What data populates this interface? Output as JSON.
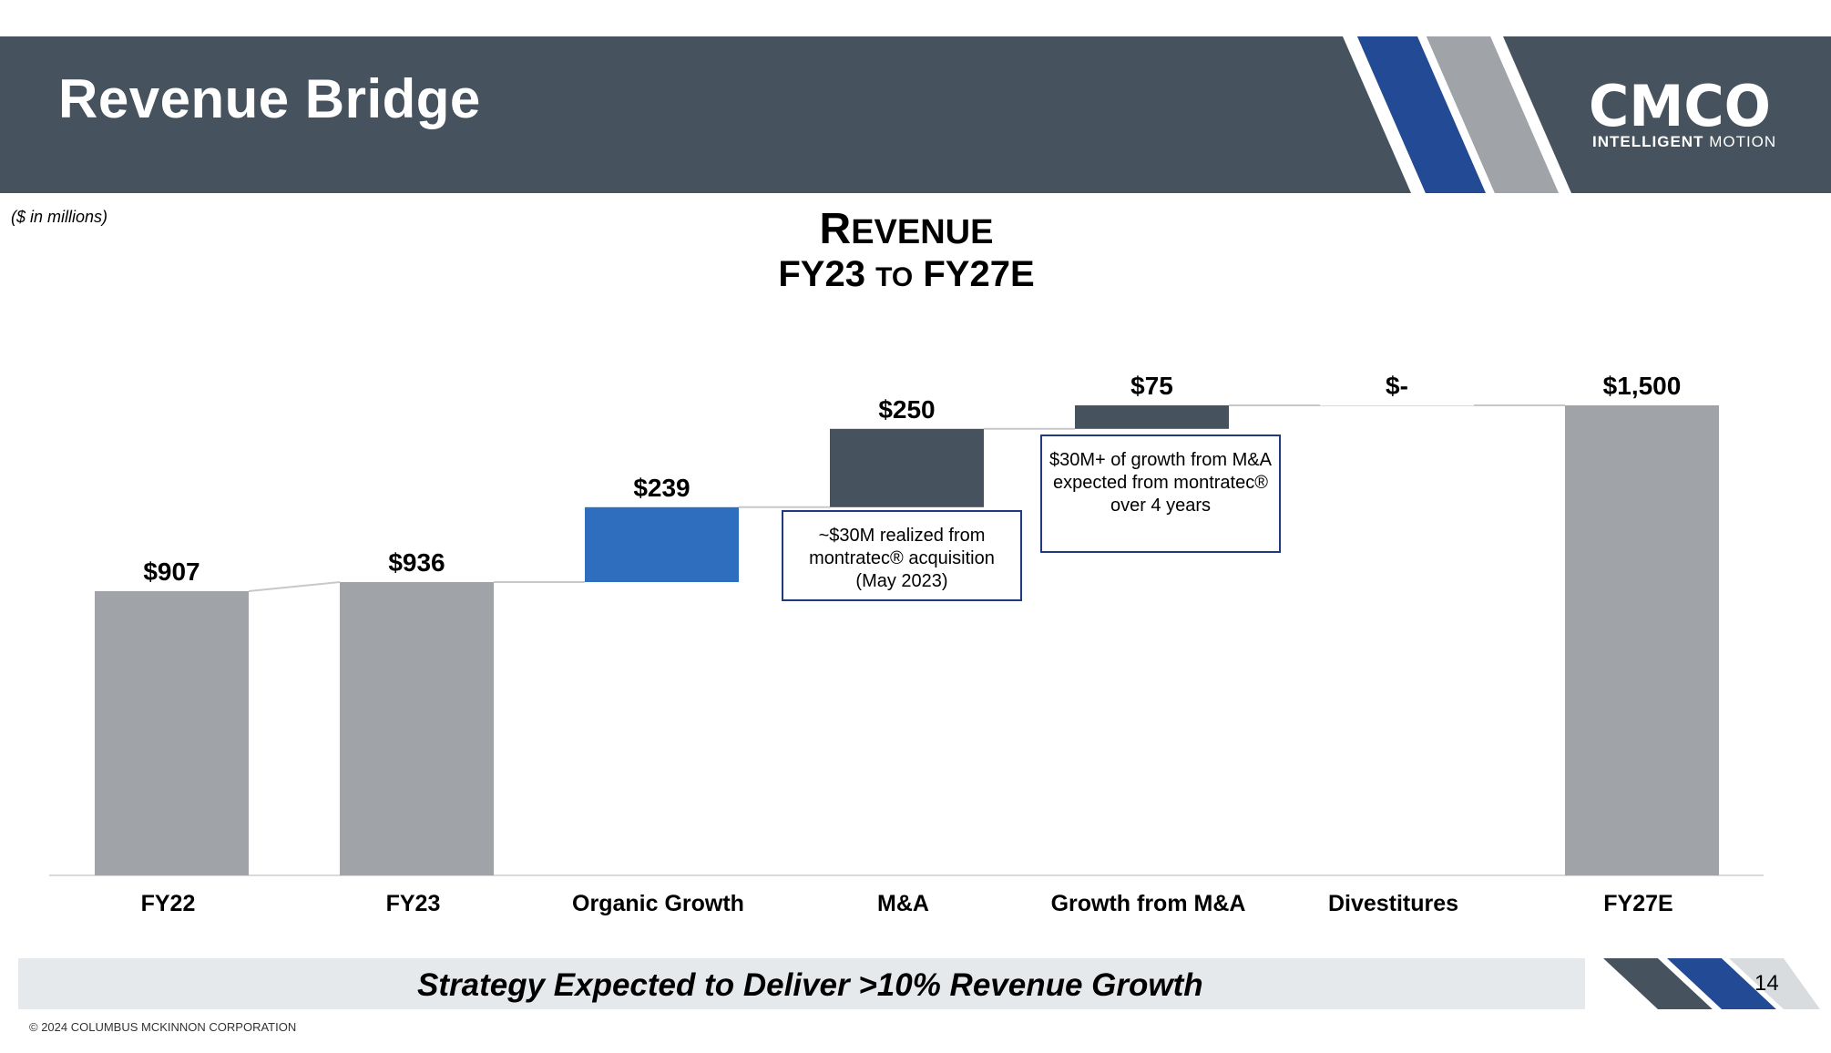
{
  "header": {
    "title": "Revenue Bridge"
  },
  "logo": {
    "word": "CMCO",
    "tagline_bold": "INTELLIGENT",
    "tagline_light": "MOTION"
  },
  "units_note": "($ in millions)",
  "chart_heading": {
    "line1_cap": "R",
    "line1_rest": "EVENUE",
    "line2_a": "FY23",
    "line2_b": "TO",
    "line2_c": "FY27E"
  },
  "chart_data": {
    "type": "bar",
    "categories": [
      "FY22",
      "FY23",
      "Organic Growth",
      "M&A",
      "Growth from M&A",
      "Divestitures",
      "FY27E"
    ],
    "values": [
      907,
      936,
      239,
      250,
      75,
      0,
      1500
    ],
    "data_labels": [
      "$907",
      "$936",
      "$239",
      "$250",
      "$75",
      "$-",
      "$1,500"
    ],
    "kinds": [
      "total",
      "total",
      "increase",
      "increase",
      "increase",
      "increase",
      "total"
    ],
    "ylim": [
      0,
      1500
    ],
    "grid": false,
    "legend": "none"
  },
  "callouts": [
    {
      "text": "~$30M realized from montratec® acquisition (May 2023)"
    },
    {
      "text": "$30M+ of growth from M&A expected from montratec® over 4 years"
    }
  ],
  "colors": {
    "total": "#a0a4a8",
    "organic": "#2f6dbf",
    "ma": "#46525d",
    "header": "#46525d",
    "accent_blue": "#234a94",
    "callout_border": "#1f3a80"
  },
  "footer": {
    "tagline": "Strategy Expected to Deliver >10% Revenue Growth",
    "page_number": "14",
    "copyright": "© 2024 COLUMBUS MCKINNON CORPORATION"
  }
}
